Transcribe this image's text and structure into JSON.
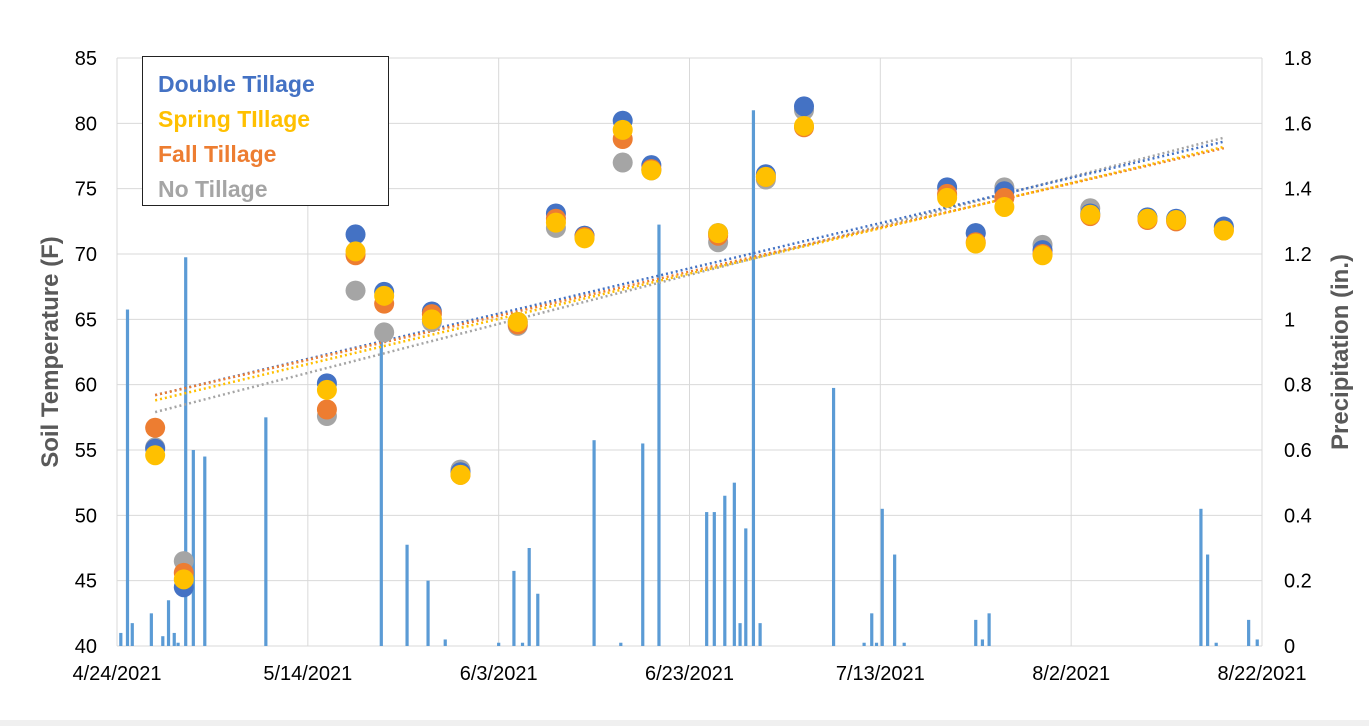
{
  "chart_data": {
    "type": "scatter+bar",
    "title": "",
    "ylabel": "Soil Temperature (F)",
    "y2label": "Precipitation (in.)",
    "xlabel": "",
    "ylim": [
      40,
      85
    ],
    "y2lim": [
      0,
      1.8
    ],
    "yticks": [
      40,
      45,
      50,
      55,
      60,
      65,
      70,
      75,
      80,
      85
    ],
    "y2ticks": [
      "0",
      "0.2",
      "0.4",
      "0.6",
      "0.8",
      "1",
      "1.2",
      "1.4",
      "1.6",
      "1.8"
    ],
    "xlim_day": [
      0,
      120
    ],
    "xticks": [
      {
        "day": 0,
        "label": "4/24/2021"
      },
      {
        "day": 20,
        "label": "5/14/2021"
      },
      {
        "day": 40,
        "label": "6/3/2021"
      },
      {
        "day": 60,
        "label": "6/23/2021"
      },
      {
        "day": 80,
        "label": "7/13/2021"
      },
      {
        "day": 100,
        "label": "8/2/2021"
      },
      {
        "day": 120,
        "label": "8/22/2021"
      }
    ],
    "grid": true,
    "legend_position": "top-left",
    "legend": [
      {
        "name": "Double Tillage",
        "color": "#4472c4"
      },
      {
        "name": "Spring TIllage",
        "color": "#ffc000"
      },
      {
        "name": "Fall Tillage",
        "color": "#ed7d31"
      },
      {
        "name": "No Tillage",
        "color": "#a5a5a5"
      }
    ],
    "series": [
      {
        "name": "No Tillage",
        "color": "#a5a5a5",
        "x": [
          4,
          7,
          22,
          25,
          28,
          33,
          36,
          42,
          46,
          49,
          53,
          56,
          63,
          68,
          72,
          87,
          90,
          93,
          97,
          102,
          108,
          111,
          116
        ],
        "y": [
          55.2,
          46.5,
          57.6,
          67.2,
          64.0,
          64.8,
          53.5,
          64.5,
          72.0,
          71.4,
          77.0,
          76.4,
          70.9,
          75.7,
          81.0,
          74.5,
          71.6,
          75.1,
          70.7,
          73.5,
          72.7,
          72.6,
          72.0
        ],
        "trend": [
          57.9,
          78.9
        ]
      },
      {
        "name": "Double Tillage",
        "color": "#4472c4",
        "x": [
          4,
          7,
          22,
          25,
          28,
          33,
          36,
          42,
          46,
          49,
          53,
          56,
          63,
          68,
          72,
          87,
          90,
          93,
          97,
          102,
          108,
          111,
          116
        ],
        "y": [
          55.1,
          44.5,
          60.1,
          71.5,
          67.1,
          65.6,
          53.3,
          64.8,
          73.1,
          71.4,
          80.2,
          76.8,
          71.6,
          76.1,
          81.3,
          75.1,
          71.6,
          74.8,
          70.3,
          73.1,
          72.8,
          72.7,
          72.1
        ],
        "trend": [
          59.2,
          78.6
        ]
      },
      {
        "name": "Fall Tillage",
        "color": "#ed7d31",
        "x": [
          4,
          7,
          22,
          25,
          28,
          33,
          36,
          42,
          46,
          49,
          53,
          56,
          63,
          68,
          72,
          87,
          90,
          93,
          97,
          102,
          108,
          111,
          116
        ],
        "y": [
          56.7,
          45.6,
          58.1,
          69.9,
          66.2,
          65.4,
          53.1,
          64.6,
          72.7,
          71.3,
          78.8,
          76.5,
          71.4,
          75.9,
          79.7,
          74.6,
          70.9,
          74.3,
          70.0,
          72.9,
          72.6,
          72.5,
          71.8
        ],
        "trend": [
          59.2,
          78.1
        ]
      },
      {
        "name": "Spring TIllage",
        "color": "#ffc000",
        "x": [
          4,
          7,
          22,
          25,
          28,
          33,
          36,
          42,
          46,
          49,
          53,
          56,
          63,
          68,
          72,
          87,
          90,
          93,
          97,
          102,
          108,
          111,
          116
        ],
        "y": [
          54.6,
          45.1,
          59.6,
          70.2,
          66.8,
          65.0,
          53.1,
          64.8,
          72.4,
          71.2,
          79.5,
          76.4,
          71.6,
          75.9,
          79.8,
          74.3,
          70.8,
          73.6,
          69.9,
          73.0,
          72.7,
          72.6,
          71.8
        ],
        "trend": [
          58.8,
          78.2
        ]
      }
    ],
    "precipitation": {
      "name": "Precipitation (in.)",
      "color": "#5b9bd5",
      "day": [
        0.4,
        1.1,
        1.6,
        3.6,
        4.8,
        5.4,
        6.0,
        6.4,
        7.2,
        8.0,
        9.2,
        15.6,
        27.7,
        30.4,
        32.6,
        34.4,
        40.0,
        41.6,
        42.5,
        43.2,
        44.1,
        50.0,
        52.8,
        55.1,
        56.8,
        61.8,
        62.6,
        63.7,
        64.7,
        65.3,
        65.9,
        66.7,
        67.4,
        75.1,
        78.3,
        79.1,
        79.6,
        80.2,
        81.5,
        82.5,
        90.0,
        90.7,
        91.4,
        95.9,
        113.6,
        114.3,
        115.2,
        118.6,
        119.5
      ],
      "inches": [
        0.04,
        1.03,
        0.07,
        0.1,
        0.03,
        0.14,
        0.04,
        0.01,
        1.19,
        0.6,
        0.58,
        0.7,
        0.98,
        0.31,
        0.2,
        0.02,
        0.01,
        0.23,
        0.01,
        0.3,
        0.16,
        0.63,
        0.01,
        0.62,
        1.29,
        0.41,
        0.41,
        0.46,
        0.5,
        0.07,
        0.36,
        1.64,
        0.07,
        0.79,
        0.01,
        0.1,
        0.01,
        0.42,
        0.28,
        0.01,
        0.08,
        0.02,
        0.1,
        0.0,
        0.42,
        0.28,
        0.01,
        0.08,
        0.02
      ]
    }
  }
}
